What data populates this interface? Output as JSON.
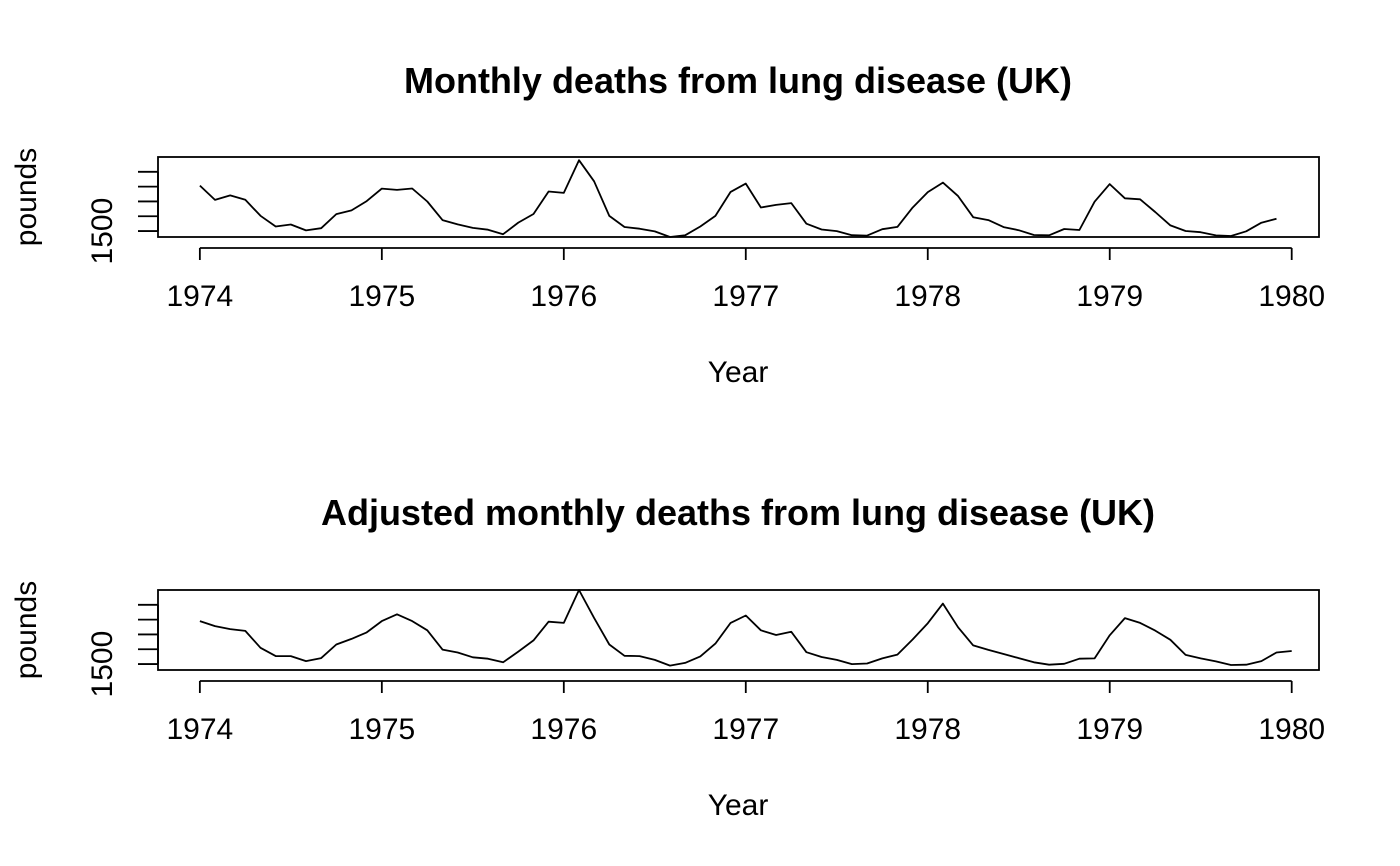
{
  "chart_data": [
    {
      "type": "line",
      "title": "Monthly deaths from lung disease (UK)",
      "xlabel": "Year",
      "ylabel": "pounds",
      "x_ticks": [
        "1974",
        "1975",
        "1976",
        "1977",
        "1978",
        "1979",
        "1980"
      ],
      "y_ticks": [
        "1500"
      ],
      "xlim": [
        1973.77,
        1980.15
      ],
      "ylim": [
        1300,
        4000
      ],
      "grid": false,
      "series": [
        {
          "x_start": 1974,
          "x_step": 0.0833333,
          "color": "#000000",
          "values": [
            3035,
            2552,
            2704,
            2554,
            2014,
            1655,
            1721,
            1524,
            1596,
            2074,
            2199,
            2512,
            2933,
            2889,
            2938,
            2497,
            1870,
            1726,
            1607,
            1545,
            1396,
            1787,
            2076,
            2837,
            2787,
            3891,
            3179,
            2011,
            1636,
            1580,
            1489,
            1300,
            1356,
            1653,
            2013,
            2823,
            3102,
            2294,
            2385,
            2444,
            1748,
            1554,
            1498,
            1361,
            1346,
            1564,
            1640,
            2293,
            2815,
            3137,
            2679,
            1969,
            1870,
            1633,
            1529,
            1366,
            1357,
            1570,
            1535,
            2491,
            3084,
            2605,
            2573,
            2143,
            1693,
            1504,
            1461,
            1354,
            1333,
            1492,
            1781,
            1915
          ]
        }
      ]
    },
    {
      "type": "line",
      "title": "Adjusted monthly deaths from lung disease (UK)",
      "xlabel": "Year",
      "ylabel": "pounds",
      "x_ticks": [
        "1974",
        "1975",
        "1976",
        "1977",
        "1978",
        "1979",
        "1980"
      ],
      "y_ticks": [
        "1500"
      ],
      "xlim": [
        1973.77,
        1980.15
      ],
      "ylim": [
        1300,
        4000
      ],
      "grid": false,
      "series": [
        {
          "x_start": 1974,
          "x_step": 0.0833333,
          "color": "#000000",
          "values": [
            2950,
            2780,
            2680,
            2620,
            2050,
            1770,
            1770,
            1600,
            1700,
            2160,
            2350,
            2570,
            2950,
            3180,
            2950,
            2640,
            1990,
            1890,
            1730,
            1680,
            1560,
            1920,
            2300,
            2930,
            2890,
            4000,
            3060,
            2160,
            1780,
            1770,
            1640,
            1450,
            1540,
            1760,
            2190,
            2890,
            3140,
            2640,
            2480,
            2590,
            1900,
            1740,
            1640,
            1500,
            1520,
            1690,
            1820,
            2330,
            2880,
            3540,
            2740,
            2130,
            1980,
            1840,
            1700,
            1560,
            1480,
            1510,
            1680,
            1690,
            2470,
            3050,
            2890,
            2630,
            2320,
            1810,
            1690,
            1590,
            1470,
            1480,
            1600,
            1890,
            1940
          ]
        }
      ]
    }
  ]
}
